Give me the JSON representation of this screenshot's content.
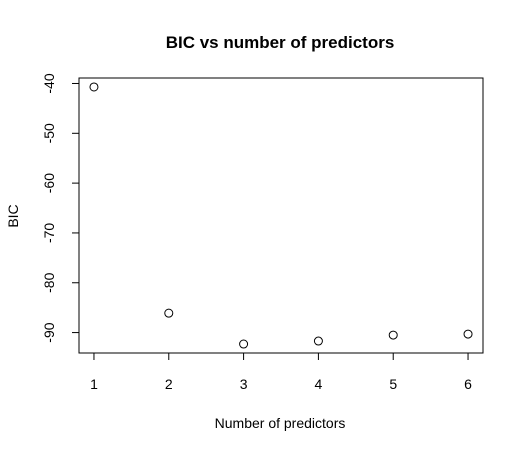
{
  "chart_data": {
    "type": "scatter",
    "title": "BIC vs number of predictors",
    "xlabel": "Number of predictors",
    "ylabel": "BIC",
    "x": [
      1,
      2,
      3,
      4,
      5,
      6
    ],
    "y": [
      -40.7,
      -86.1,
      -92.3,
      -91.7,
      -90.5,
      -90.3
    ],
    "xticks": [
      1,
      2,
      3,
      4,
      5,
      6
    ],
    "yticks": [
      -40,
      -50,
      -60,
      -70,
      -80,
      -90
    ],
    "xlim": [
      0.8,
      6.2
    ],
    "ylim": [
      -94.1,
      -38.9
    ],
    "grid": false,
    "legend": "none",
    "point_color": "#000000"
  }
}
